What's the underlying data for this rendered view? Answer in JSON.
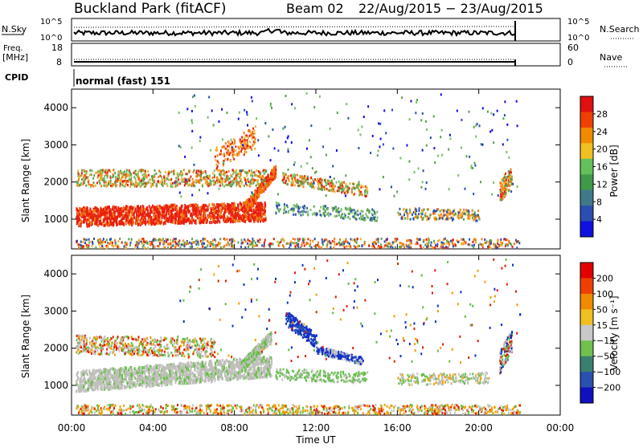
{
  "header": {
    "title": "Buckland Park (fitACF)",
    "beam": "Beam 02",
    "dates": "22/Aug/2015 − 23/Aug/2015"
  },
  "strips": {
    "noise": {
      "left_label": "N.Sky",
      "left_ticks": [
        "10^5",
        "10^0"
      ],
      "right_ticks": [
        "10^5",
        "10^0"
      ],
      "right_label": "N.Search"
    },
    "freq": {
      "left_label_1": "Freq.",
      "left_label_2": "[MHz]",
      "left_ticks": [
        "18",
        "8"
      ],
      "right_ticks": [
        "60",
        "0"
      ],
      "right_label": "Nave"
    },
    "cpid": {
      "label": "CPID",
      "value": "normal (fast) 151"
    }
  },
  "chart_data": [
    {
      "type": "heatmap",
      "name": "power-panel",
      "ylabel": "Slant Range [km]",
      "yticks": [
        "1000",
        "2000",
        "3000",
        "4000"
      ],
      "ylim": [
        200,
        4500
      ],
      "colorbar": {
        "label": "Power [dB]",
        "ticks": [
          "4",
          "8",
          "12",
          "16",
          "20",
          "24",
          "28"
        ],
        "colors": [
          "#1010e0",
          "#2a4fb0",
          "#3f7a8a",
          "#3f9a4a",
          "#63c05a",
          "#f0c020",
          "#f08a00",
          "#f04000",
          "#e01010"
        ]
      }
    },
    {
      "type": "heatmap",
      "name": "velocity-panel",
      "ylabel": "Slant Range [km]",
      "yticks": [
        "1000",
        "2000",
        "3000",
        "4000"
      ],
      "ylim": [
        200,
        4500
      ],
      "colorbar": {
        "label": "Velocity [m s⁻¹]",
        "ticks": [
          "200",
          "100",
          "50",
          "15",
          "−15",
          "−50",
          "−100",
          "−200"
        ],
        "colors": [
          "#1010c0",
          "#2a50b0",
          "#3a8070",
          "#70c050",
          "#c8c8c8",
          "#f0c020",
          "#f08a00",
          "#f04000",
          "#e00000"
        ]
      }
    }
  ],
  "xaxis": {
    "ticks": [
      "00:00",
      "04:00",
      "08:00",
      "12:00",
      "16:00",
      "20:00",
      "00:00"
    ],
    "label": "Time UT"
  },
  "colors": {
    "power_red": "#e82010",
    "power_orange": "#f08a00",
    "power_green": "#5aa050",
    "vel_grey": "#c0bfbc",
    "vel_blue": "#1030c8",
    "vel_green": "#60c040",
    "vel_orange": "#f0a000"
  }
}
